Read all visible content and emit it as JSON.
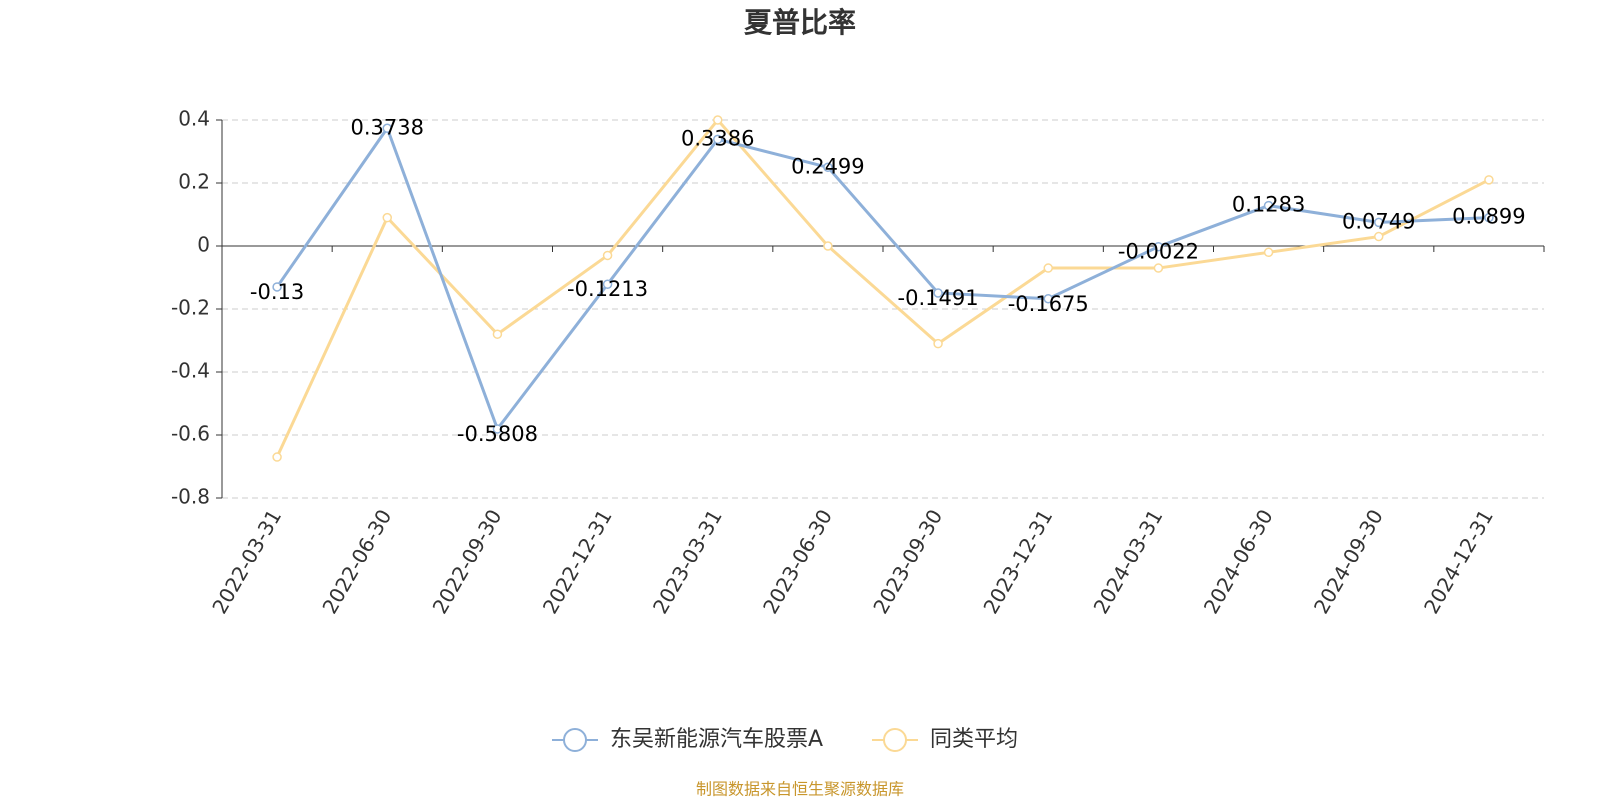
{
  "chart_data": {
    "type": "line",
    "title": "夏普比率",
    "categories": [
      "2022-03-31",
      "2022-06-30",
      "2022-09-30",
      "2022-12-31",
      "2023-03-31",
      "2023-06-30",
      "2023-09-30",
      "2023-12-31",
      "2024-03-31",
      "2024-06-30",
      "2024-09-30",
      "2024-12-31"
    ],
    "series": [
      {
        "name": "东吴新能源汽车股票A",
        "color": "#8eb0d9",
        "values": [
          -0.13,
          0.3738,
          -0.5808,
          -0.1213,
          0.3386,
          0.2499,
          -0.1491,
          -0.1675,
          -0.0022,
          0.1283,
          0.0749,
          0.0899
        ],
        "data_labels": true
      },
      {
        "name": "同类平均",
        "color": "#fbd995",
        "values": [
          -0.67,
          0.09,
          -0.28,
          -0.03,
          0.4,
          0.0,
          -0.31,
          -0.07,
          -0.07,
          -0.02,
          0.03,
          0.21
        ],
        "data_labels": false
      }
    ],
    "ylim": [
      -0.8,
      0.4
    ],
    "yticks": [
      0.4,
      0.2,
      0,
      -0.2,
      -0.4,
      -0.6,
      -0.8
    ],
    "grid": true,
    "legend": "bottom",
    "source": "制图数据来自恒生聚源数据库"
  }
}
